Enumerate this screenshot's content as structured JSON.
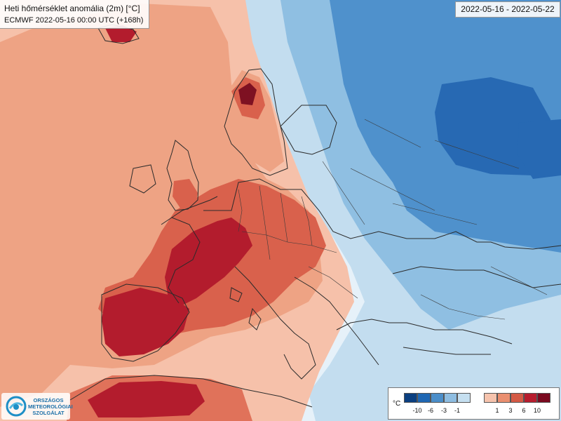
{
  "title": "Heti hőmérséklet anomália (2m) [°C]",
  "subtitle": "ECMWF 2022-05-16 00:00 UTC (+168h)",
  "date_range": "2022-05-16 - 2022-05-22",
  "logo": {
    "line1": "ORSZÁGOS",
    "line2": "METEOROLÓGIAI",
    "line3": "SZOLGÁLAT"
  },
  "legend": {
    "unit": "°C",
    "cold_colors": [
      "#0b3f80",
      "#1f67b3",
      "#4b8ec9",
      "#8ebde1",
      "#c5dff0"
    ],
    "warm_colors": [
      "#f6c3ad",
      "#ea8f70",
      "#d45a45",
      "#b71d2e",
      "#7a0a1f"
    ],
    "cold_labels": [
      "-10",
      "-6",
      "-3",
      "-1"
    ],
    "warm_labels": [
      "1",
      "3",
      "6",
      "10"
    ]
  }
}
